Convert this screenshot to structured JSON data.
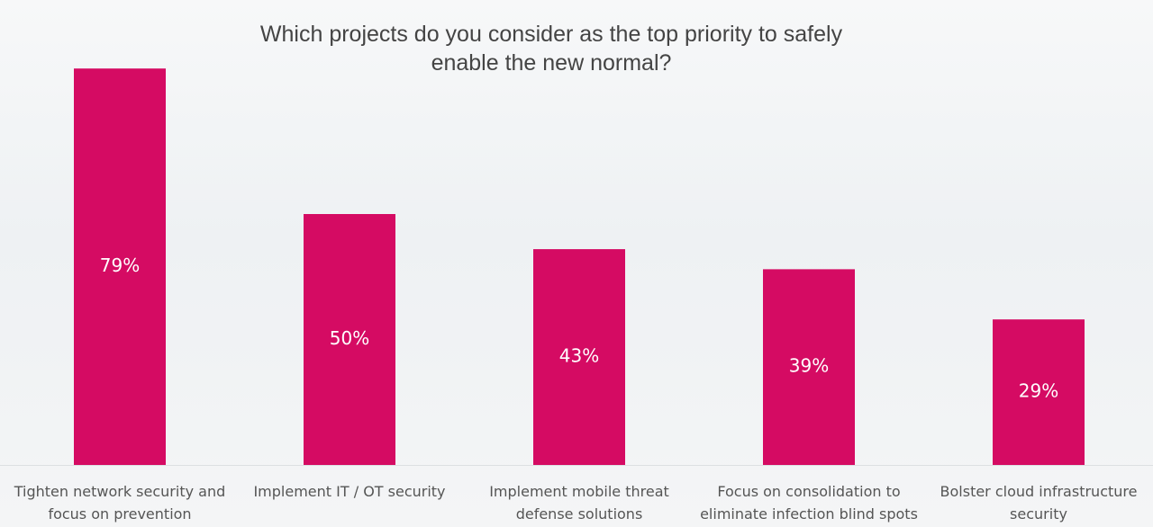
{
  "chart_data": {
    "type": "bar",
    "title": "Which projects do you consider as the top priority to safely enable the new normal?",
    "categories": [
      "Tighten network security and focus on prevention",
      "Implement IT / OT security",
      "Implement mobile threat defense solutions",
      "Focus on consolidation to eliminate infection blind spots",
      "Bolster cloud infrastructure security"
    ],
    "values": [
      79,
      50,
      43,
      39,
      29
    ],
    "value_labels": [
      "79%",
      "50%",
      "43%",
      "39%",
      "29%"
    ],
    "color": "#d50b63"
  }
}
